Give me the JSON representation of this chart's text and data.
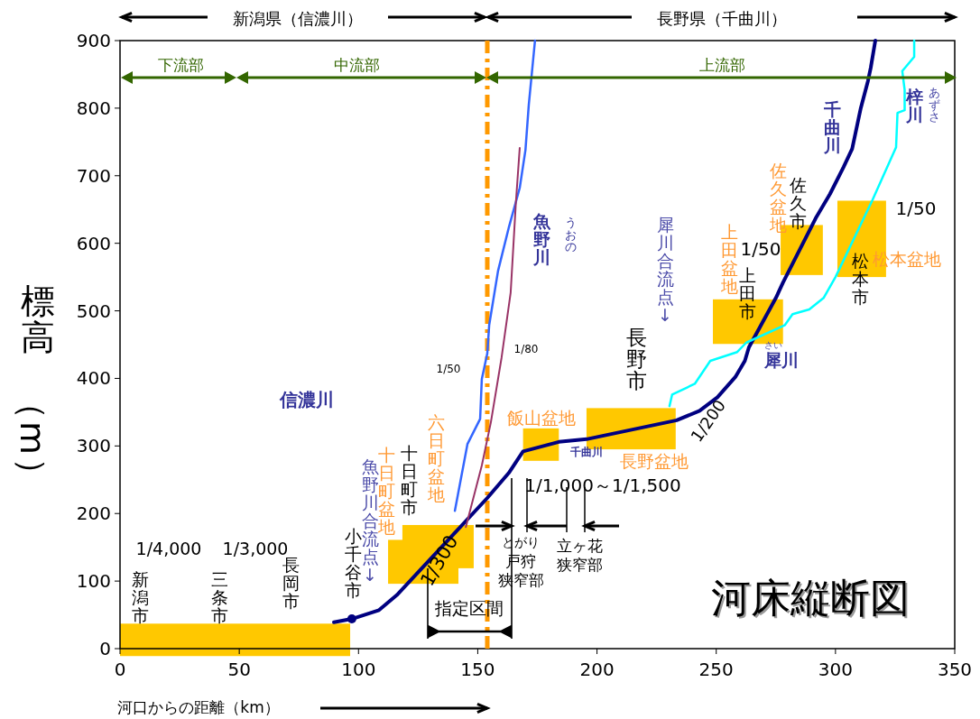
{
  "chart_data": {
    "type": "line",
    "xlabel": "河口からの距離（km）",
    "ylabel": "標高（m）",
    "xlim": [
      0,
      350
    ],
    "ylim": [
      0,
      900
    ],
    "xticks": [
      0,
      50,
      100,
      150,
      200,
      250,
      300,
      350
    ],
    "yticks": [
      0,
      100,
      200,
      300,
      400,
      500,
      600,
      700,
      800,
      900
    ],
    "grid": false,
    "series": [
      {
        "color": "#000080",
        "x": [
          89.7,
          97.2,
          108.6,
          116,
          141.9,
          154,
          163,
          169,
          184,
          195.6,
          233.4,
          243,
          250.5,
          258,
          262,
          263.7,
          275,
          278,
          292,
          297.7,
          303.4,
          307,
          310.6,
          313.6,
          314.8,
          316.7
        ],
        "values": [
          39,
          44,
          57,
          79,
          177,
          223,
          260,
          292,
          306,
          310,
          338,
          352,
          372,
          402,
          426,
          446,
          519,
          542,
          639,
          673,
          713,
          740,
          800,
          840,
          860,
          900
        ]
      },
      {
        "color": "#3366ff",
        "x": [
          140.4,
          145.7,
          151,
          151.7,
          154,
          154.8,
          158.5,
          163,
          167.6,
          170,
          171.4,
          174
        ],
        "values": [
          204,
          303,
          340,
          399,
          437,
          479,
          559,
          623,
          682,
          738,
          805,
          900
        ]
      },
      {
        "color": "#993366",
        "x": [
          145,
          151.7,
          155.5,
          160,
          163.8,
          166,
          167.6
        ],
        "values": [
          180,
          271,
          335,
          431,
          527,
          661,
          741
        ]
      },
      {
        "color": "#00ffff",
        "x": [
          230.4,
          231.5,
          241,
          247.5,
          258.8,
          262.6,
          278.8,
          282,
          289,
          295,
          300,
          315.5,
          325.4,
          326,
          329,
          329,
          328,
          333,
          333
        ],
        "values": [
          359,
          376,
          392,
          426,
          439,
          453,
          479,
          495,
          502,
          519,
          550,
          664,
          742,
          793,
          797,
          827,
          855,
          876,
          900
        ]
      },
      {
        "type": "scatter",
        "marker": "circle",
        "color": "#000080",
        "x": [
          97.2
        ],
        "values": [
          44
        ]
      }
    ],
    "ref_lines": [
      {
        "axis": "x",
        "value": 154,
        "color": "#ff9900",
        "line_style": "dashed"
      }
    ],
    "annotations": [
      "新潟県（信濃川）",
      "長野県（千曲川）",
      "下流部",
      "中流部",
      "上流部",
      "信濃川",
      "1/50",
      "1/80",
      "魚野川",
      "うおの",
      "犀川合流点↓",
      "長野市",
      "飯山盆地",
      "千曲川",
      "長野盆地",
      "1/200",
      "1/1,000～1/1,500",
      "上田盆地",
      "1/50",
      "上田市",
      "さい",
      "犀川",
      "佐久盆地",
      "佐久市",
      "1/50",
      "松本盆地",
      "松本市",
      "千曲川",
      "梓川",
      "あずさ",
      "河床縦断図",
      "1/4,000",
      "1/3,000",
      "新潟市",
      "三条市",
      "長岡市",
      "小千谷市",
      "魚野川合流点↓",
      "十日町盆地",
      "十日町市",
      "六日町盆地",
      "1/300",
      "とがり",
      "戸狩狭窄部",
      "立ヶ花狭窄部",
      "指定区間"
    ]
  }
}
